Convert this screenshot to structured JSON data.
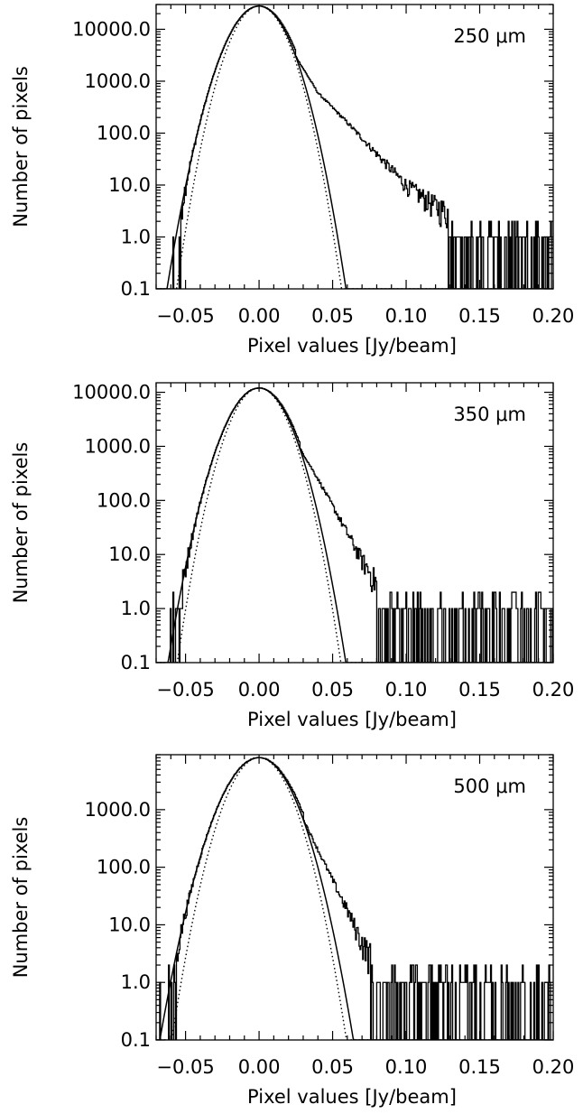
{
  "chart_data": [
    {
      "type": "line",
      "panel_label": "250 μm",
      "xlabel": "Pixel values [Jy/beam]",
      "ylabel": "Number of pixels",
      "xlim": [
        -0.07,
        0.2
      ],
      "ylim": [
        0.1,
        30000
      ],
      "yscale": "log",
      "x_ticks": [
        -0.05,
        0.0,
        0.05,
        0.1,
        0.15,
        0.2
      ],
      "x_tick_labels": [
        "−0.05",
        "0.00",
        "0.05",
        "0.10",
        "0.15",
        "0.20"
      ],
      "y_ticks": [
        0.1,
        1,
        10,
        100,
        1000,
        10000
      ],
      "y_tick_labels": [
        "0.1",
        "1.0",
        "10.0",
        "100.0",
        "1000.0",
        "10000.0"
      ],
      "series": [
        {
          "style": "histogram",
          "peak": 28000,
          "center": 0.0,
          "sigma_left": 0.0125,
          "tail_start": 0.025,
          "tail_points": [
            [
              0.025,
              3000
            ],
            [
              0.04,
              600
            ],
            [
              0.06,
              160
            ],
            [
              0.08,
              40
            ],
            [
              0.1,
              10
            ],
            [
              0.12,
              4
            ],
            [
              0.15,
              1.5
            ],
            [
              0.2,
              0.9
            ]
          ]
        },
        {
          "style": "solid",
          "peak": 28000,
          "center": 0.0,
          "sigma_left": 0.0125,
          "sigma_right": 0.0118
        },
        {
          "style": "dotted",
          "peak": 28000,
          "center": 0.0,
          "sigma": 0.0112
        }
      ]
    },
    {
      "type": "line",
      "panel_label": "350 μm",
      "xlabel": "Pixel values [Jy/beam]",
      "ylabel": "Number of pixels",
      "xlim": [
        -0.07,
        0.2
      ],
      "ylim": [
        0.1,
        15000
      ],
      "yscale": "log",
      "x_ticks": [
        -0.05,
        0.0,
        0.05,
        0.1,
        0.15,
        0.2
      ],
      "x_tick_labels": [
        "−0.05",
        "0.00",
        "0.05",
        "0.10",
        "0.15",
        "0.20"
      ],
      "y_ticks": [
        0.1,
        1,
        10,
        100,
        1000,
        10000
      ],
      "y_tick_labels": [
        "0.1",
        "1.0",
        "10.0",
        "100.0",
        "1000.0",
        "10000.0"
      ],
      "series": [
        {
          "style": "histogram",
          "peak": 12000,
          "center": 0.0,
          "sigma_left": 0.0128,
          "tail_start": 0.028,
          "tail_points": [
            [
              0.028,
              900
            ],
            [
              0.04,
              250
            ],
            [
              0.05,
              80
            ],
            [
              0.06,
              25
            ],
            [
              0.07,
              8
            ],
            [
              0.08,
              3
            ],
            [
              0.1,
              1.2
            ],
            [
              0.2,
              0.9
            ]
          ]
        },
        {
          "style": "solid",
          "peak": 12000,
          "center": 0.0,
          "sigma_left": 0.0128,
          "sigma_right": 0.0122
        },
        {
          "style": "dotted",
          "peak": 12000,
          "center": 0.0,
          "sigma": 0.0115
        }
      ]
    },
    {
      "type": "line",
      "panel_label": "500 μm",
      "xlabel": "Pixel values [Jy/beam]",
      "ylabel": "Number of pixels",
      "xlim": [
        -0.07,
        0.2
      ],
      "ylim": [
        0.1,
        9000
      ],
      "yscale": "log",
      "x_ticks": [
        -0.05,
        0.0,
        0.05,
        0.1,
        0.15,
        0.2
      ],
      "x_tick_labels": [
        "−0.05",
        "0.00",
        "0.05",
        "0.10",
        "0.15",
        "0.20"
      ],
      "y_ticks": [
        0.1,
        1,
        10,
        100,
        1000
      ],
      "y_tick_labels": [
        "0.1",
        "1.0",
        "10.0",
        "100.0",
        "1000.0"
      ],
      "series": [
        {
          "style": "histogram",
          "peak": 8000,
          "center": 0.0,
          "sigma_left": 0.0142,
          "tail_start": 0.03,
          "tail_points": [
            [
              0.03,
              700
            ],
            [
              0.04,
              200
            ],
            [
              0.05,
              60
            ],
            [
              0.06,
              18
            ],
            [
              0.07,
              5
            ],
            [
              0.08,
              2
            ],
            [
              0.1,
              1.0
            ],
            [
              0.17,
              0.9
            ]
          ]
        },
        {
          "style": "solid",
          "peak": 8000,
          "center": 0.0,
          "sigma_left": 0.0142,
          "sigma_right": 0.0135
        },
        {
          "style": "dotted",
          "peak": 8000,
          "center": 0.0,
          "sigma": 0.0125
        }
      ]
    }
  ]
}
